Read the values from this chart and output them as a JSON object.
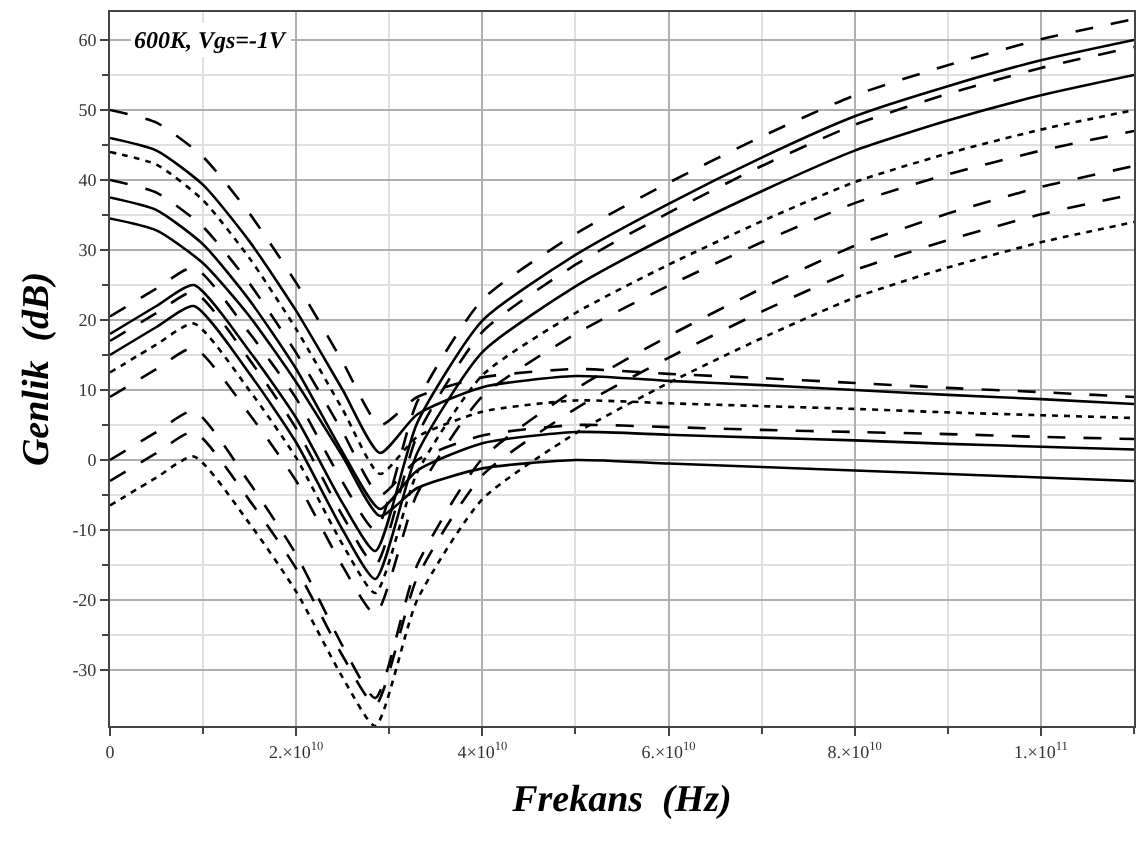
{
  "chart_data": {
    "type": "line",
    "xlabel": "Frekans  (Hz)",
    "ylabel": "Genlik  (dB)",
    "annotations": [
      "600K, Vgs=-1V"
    ],
    "xlim": [
      0,
      110000000000
    ],
    "ylim": [
      -38,
      64
    ],
    "xticks": [
      0,
      {
        "value": 20000000000,
        "label": "2.×10$^{10}$"
      },
      {
        "value": 40000000000,
        "label": "4×10$^{10}$"
      },
      {
        "value": 60000000000,
        "label": "6.×10$^{10}$"
      },
      {
        "value": 80000000000,
        "label": "8.×10$^{10}$"
      },
      {
        "value": 100000000000,
        "label": "1.×10$^{11}$"
      }
    ],
    "yticks": [
      -30,
      -20,
      -10,
      0,
      10,
      20,
      30,
      40,
      50,
      60
    ],
    "grid": true,
    "marker": "none",
    "series": [
      {
        "color": "#000000",
        "line_style": "dashed",
        "x": [
          0,
          5000000000,
          9000000000,
          15000000000,
          20000000000,
          25000000000,
          28500000000,
          33000000000,
          40000000000,
          50000000000,
          60000000000,
          70000000000,
          80000000000,
          90000000000,
          100000000000,
          110000000000
        ],
        "values": [
          20.5,
          24.5,
          27.5,
          18.1,
          8.8,
          -3.2,
          -10,
          8.3,
          22.9,
          32.3,
          39.6,
          46.2,
          52.1,
          56.4,
          60.1,
          63
        ]
      },
      {
        "color": "#000000",
        "line_style": "solid",
        "x": [
          0,
          5000000000,
          9000000000,
          15000000000,
          20000000000,
          25000000000,
          28500000000,
          33000000000,
          40000000000,
          50000000000,
          60000000000,
          70000000000,
          80000000000,
          90000000000,
          100000000000,
          110000000000
        ],
        "values": [
          18,
          22,
          25,
          15.5,
          6,
          -6.2,
          -13,
          5.3,
          19.9,
          29.3,
          36.6,
          43.2,
          49.1,
          53.4,
          57.1,
          60
        ]
      },
      {
        "color": "#000000",
        "line_style": "dashed",
        "x": [
          0,
          5000000000,
          9000000000,
          15000000000,
          20000000000,
          25000000000,
          28500000000,
          33000000000,
          40000000000,
          50000000000,
          60000000000,
          70000000000,
          80000000000,
          90000000000,
          100000000000,
          110000000000
        ],
        "values": [
          17,
          21,
          24,
          14.3,
          4.5,
          -8,
          -15,
          3.5,
          18.3,
          27.9,
          35.3,
          42,
          47.9,
          52.3,
          56,
          59
        ]
      },
      {
        "color": "#000000",
        "line_style": "solid",
        "x": [
          0,
          5000000000,
          9000000000,
          15000000000,
          20000000000,
          25000000000,
          28500000000,
          33000000000,
          40000000000,
          50000000000,
          60000000000,
          70000000000,
          80000000000,
          90000000000,
          100000000000,
          110000000000
        ],
        "values": [
          15,
          19,
          22,
          12.3,
          2.5,
          -10,
          -17,
          1,
          15.4,
          24.8,
          32,
          38.4,
          44.2,
          48.5,
          52.1,
          55
        ]
      },
      {
        "color": "#000000",
        "line_style": "dotted",
        "x": [
          0,
          5000000000,
          9000000000,
          15000000000,
          20000000000,
          25000000000,
          28500000000,
          33000000000,
          40000000000,
          50000000000,
          60000000000,
          70000000000,
          80000000000,
          90000000000,
          100000000000,
          110000000000
        ],
        "values": [
          12.5,
          16.5,
          19.5,
          9.9,
          0.3,
          -12.1,
          -19,
          -1.8,
          12.1,
          21,
          27.9,
          34.1,
          39.7,
          43.8,
          47.2,
          50
        ]
      },
      {
        "color": "#000000",
        "line_style": "dashed",
        "x": [
          0,
          5000000000,
          9000000000,
          15000000000,
          20000000000,
          25000000000,
          28500000000,
          33000000000,
          40000000000,
          50000000000,
          60000000000,
          70000000000,
          80000000000,
          90000000000,
          100000000000,
          110000000000
        ],
        "values": [
          9,
          13,
          16,
          6.5,
          -3,
          -15.2,
          -22,
          -4.8,
          9.1,
          18,
          24.9,
          31.1,
          36.7,
          40.8,
          44.2,
          47
        ]
      },
      {
        "color": "#000000",
        "line_style": "dashed",
        "x": [
          0,
          5000000000,
          9000000000,
          15000000000,
          20000000000,
          25000000000,
          28500000000,
          33000000000,
          40000000000,
          50000000000,
          60000000000,
          70000000000,
          80000000000,
          90000000000,
          100000000000,
          110000000000
        ],
        "values": [
          0,
          4,
          7,
          -3.3,
          -13.5,
          -26.6,
          -34,
          -15,
          0.2,
          10.1,
          17.7,
          24.5,
          30.6,
          35.2,
          39,
          42
        ]
      },
      {
        "color": "#000000",
        "line_style": "dashed",
        "x": [
          0,
          5000000000,
          9000000000,
          15000000000,
          20000000000,
          25000000000,
          28500000000,
          33000000000,
          40000000000,
          50000000000,
          60000000000,
          70000000000,
          80000000000,
          90000000000,
          100000000000,
          110000000000
        ],
        "values": [
          -3,
          1,
          4,
          -5.8,
          -15.5,
          -28,
          -35,
          -16.8,
          -2.2,
          7.3,
          14.6,
          21.2,
          27.1,
          31.4,
          35.1,
          38
        ]
      },
      {
        "color": "#000000",
        "line_style": "dotted",
        "x": [
          0,
          5000000000,
          9000000000,
          15000000000,
          20000000000,
          25000000000,
          28500000000,
          33000000000,
          40000000000,
          50000000000,
          60000000000,
          70000000000,
          80000000000,
          90000000000,
          100000000000,
          110000000000
        ],
        "values": [
          -6.5,
          -2.5,
          0.5,
          -9.1,
          -18.8,
          -31.1,
          -38,
          -20,
          -5.6,
          3.8,
          11,
          17.4,
          23.2,
          27.5,
          31.1,
          34
        ]
      },
      {
        "color": "#000000",
        "line_style": "dashed",
        "x": [
          0,
          5000000000,
          10000000000,
          15000000000,
          20000000000,
          25000000000,
          29000000000,
          33000000000,
          40000000000,
          50000000000,
          60000000000,
          70000000000,
          80000000000,
          90000000000,
          100000000000,
          110000000000
        ],
        "values": [
          50,
          48.2,
          43.3,
          35.2,
          25.3,
          14,
          5,
          9,
          11.8,
          13,
          12.3,
          11.7,
          11,
          10.3,
          9.7,
          9
        ]
      },
      {
        "color": "#000000",
        "line_style": "solid",
        "x": [
          0,
          5000000000,
          10000000000,
          15000000000,
          20000000000,
          25000000000,
          29000000000,
          33000000000,
          40000000000,
          50000000000,
          60000000000,
          70000000000,
          80000000000,
          90000000000,
          100000000000,
          110000000000
        ],
        "values": [
          46,
          44.2,
          39.3,
          31.2,
          21.3,
          10,
          1,
          6.5,
          10.4,
          12,
          11.3,
          10.7,
          10,
          9.3,
          8.7,
          8
        ]
      },
      {
        "color": "#000000",
        "line_style": "dotted",
        "x": [
          0,
          5000000000,
          10000000000,
          15000000000,
          20000000000,
          25000000000,
          29000000000,
          33000000000,
          40000000000,
          50000000000,
          60000000000,
          70000000000,
          80000000000,
          90000000000,
          100000000000,
          110000000000
        ],
        "values": [
          44,
          42.2,
          37.1,
          28.8,
          18.7,
          7.2,
          -2,
          3.3,
          6.9,
          8.5,
          8.1,
          7.7,
          7.3,
          6.8,
          6.4,
          6
        ]
      },
      {
        "color": "#000000",
        "line_style": "dashed",
        "x": [
          0,
          5000000000,
          10000000000,
          15000000000,
          20000000000,
          25000000000,
          29000000000,
          33000000000,
          40000000000,
          50000000000,
          60000000000,
          70000000000,
          80000000000,
          90000000000,
          100000000000,
          110000000000
        ],
        "values": [
          40,
          38.2,
          33.3,
          25.2,
          15.3,
          4,
          -5,
          0,
          3.5,
          5,
          4.7,
          4.3,
          4,
          3.7,
          3.3,
          3
        ]
      },
      {
        "color": "#000000",
        "line_style": "solid",
        "x": [
          0,
          5000000000,
          10000000000,
          15000000000,
          20000000000,
          25000000000,
          29000000000,
          33000000000,
          40000000000,
          50000000000,
          60000000000,
          70000000000,
          80000000000,
          90000000000,
          100000000000,
          110000000000
        ],
        "values": [
          37.5,
          35.7,
          30.8,
          22.8,
          13,
          1.1,
          -7,
          -1.5,
          2.4,
          4,
          3.6,
          3.2,
          2.8,
          2.3,
          1.9,
          1.5
        ]
      },
      {
        "color": "#000000",
        "line_style": "solid",
        "x": [
          0,
          5000000000,
          10000000000,
          15000000000,
          20000000000,
          25000000000,
          29000000000,
          33000000000,
          40000000000,
          50000000000,
          60000000000,
          70000000000,
          80000000000,
          90000000000,
          100000000000,
          110000000000
        ],
        "values": [
          34.5,
          32.8,
          28.1,
          20.5,
          11.1,
          0.5,
          -8,
          -4,
          -1.2,
          0,
          -0.5,
          -1,
          -1.5,
          -2,
          -2.5,
          -3
        ]
      }
    ]
  }
}
